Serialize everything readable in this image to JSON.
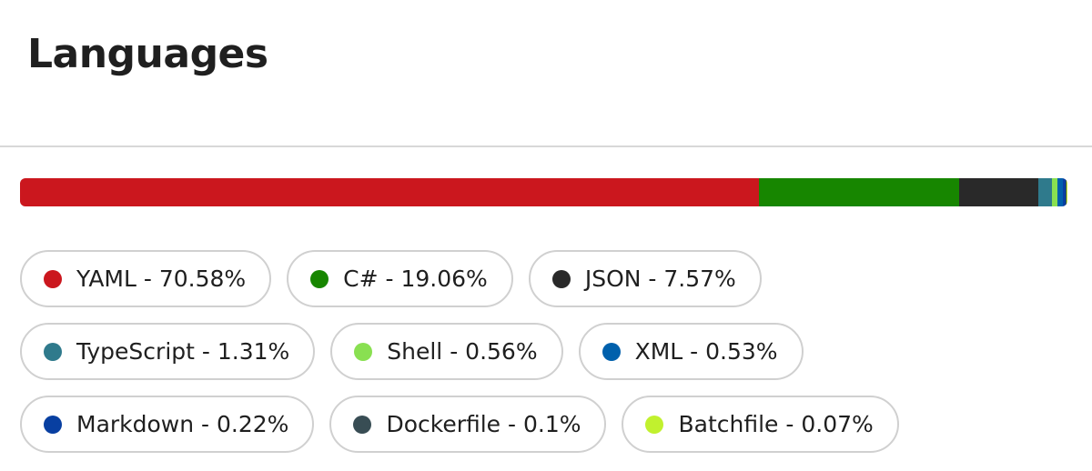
{
  "title": "Languages",
  "colors": {
    "YAML": "#cb171e",
    "C#": "#178600",
    "JSON": "#292929",
    "TypeScript": "#3178c6",
    "Shell": "#89e051",
    "XML": "#0060ac",
    "Markdown": "#083fa1",
    "Dockerfile": "#384d54",
    "Batchfile": "#c1f12e"
  },
  "languages": [
    {
      "name": "YAML",
      "percent": 70.58,
      "label": "YAML - 70.58%",
      "color": "#cb171e"
    },
    {
      "name": "C#",
      "percent": 19.06,
      "label": "C# - 19.06%",
      "color": "#178600"
    },
    {
      "name": "JSON",
      "percent": 7.57,
      "label": "JSON - 7.57%",
      "color": "#292929"
    },
    {
      "name": "TypeScript",
      "percent": 1.31,
      "label": "TypeScript - 1.31%",
      "color": "#2f7a8c"
    },
    {
      "name": "Shell",
      "percent": 0.56,
      "label": "Shell - 0.56%",
      "color": "#89e051"
    },
    {
      "name": "XML",
      "percent": 0.53,
      "label": "XML - 0.53%",
      "color": "#0060ac"
    },
    {
      "name": "Markdown",
      "percent": 0.22,
      "label": "Markdown - 0.22%",
      "color": "#083fa1"
    },
    {
      "name": "Dockerfile",
      "percent": 0.1,
      "label": "Dockerfile - 0.1%",
      "color": "#384d54"
    },
    {
      "name": "Batchfile",
      "percent": 0.07,
      "label": "Batchfile - 0.07%",
      "color": "#c1f12e"
    }
  ]
}
